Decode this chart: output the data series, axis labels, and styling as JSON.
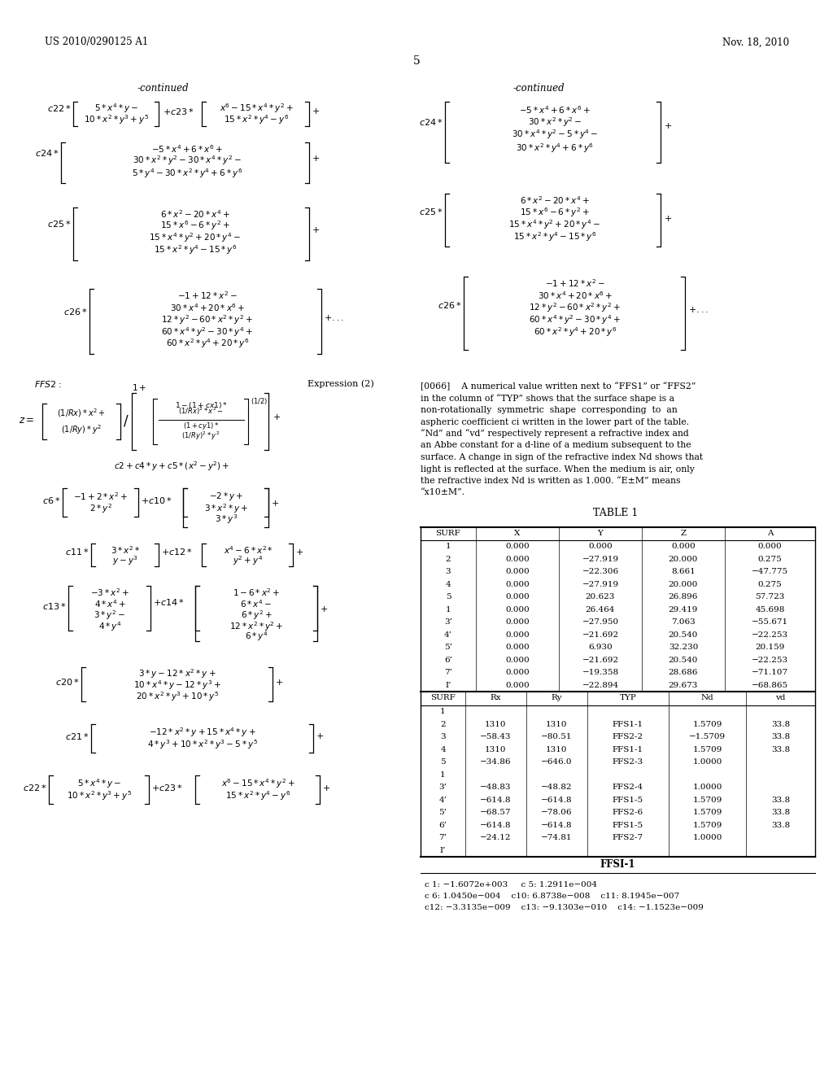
{
  "patent_number": "US 2010/0290125 A1",
  "date": "Nov. 18, 2010",
  "page_number": "5",
  "background_color": "#ffffff",
  "text_color": "#000000",
  "table_title": "TABLE 1",
  "table_headers1": [
    "SURF",
    "X",
    "Y",
    "Z",
    "A"
  ],
  "table_data1": [
    [
      "1",
      "0.000",
      "0.000",
      "0.000",
      "0.000"
    ],
    [
      "2",
      "0.000",
      "−27.919",
      "20.000",
      "0.275"
    ],
    [
      "3",
      "0.000",
      "−22.306",
      "8.661",
      "−47.775"
    ],
    [
      "4",
      "0.000",
      "−27.919",
      "20.000",
      "0.275"
    ],
    [
      "5",
      "0.000",
      "20.623",
      "26.896",
      "57.723"
    ],
    [
      "1",
      "0.000",
      "26.464",
      "29.419",
      "45.698"
    ],
    [
      "3’",
      "0.000",
      "−27.950",
      "7.063",
      "−55.671"
    ],
    [
      "4’",
      "0.000",
      "−21.692",
      "20.540",
      "−22.253"
    ],
    [
      "5’",
      "0.000",
      "6.930",
      "32.230",
      "20.159"
    ],
    [
      "6’",
      "0.000",
      "−21.692",
      "20.540",
      "−22.253"
    ],
    [
      "7’",
      "0.000",
      "−19.358",
      "28.686",
      "−71.107"
    ],
    [
      "I’",
      "0.000",
      "−22.894",
      "29.673",
      "−68.865"
    ]
  ],
  "table_headers2": [
    "SURF",
    "Rx",
    "Ry",
    "TYP",
    "Nd",
    "vd"
  ],
  "table_data2": [
    [
      "1",
      "",
      "",
      "",
      "",
      ""
    ],
    [
      "2",
      "1310",
      "1310",
      "FFS1-1",
      "1.5709",
      "33.8"
    ],
    [
      "3",
      "−58.43",
      "−80.51",
      "FFS2-2",
      "−1.5709",
      "33.8"
    ],
    [
      "4",
      "1310",
      "1310",
      "FFS1-1",
      "1.5709",
      "33.8"
    ],
    [
      "5",
      "−34.86",
      "−646.0",
      "FFS2-3",
      "1.0000",
      ""
    ],
    [
      "1",
      "",
      "",
      "",
      "",
      ""
    ],
    [
      "3’",
      "−48.83",
      "−48.82",
      "FFS2-4",
      "1.0000",
      ""
    ],
    [
      "4’",
      "−614.8",
      "−614.8",
      "FFS1-5",
      "1.5709",
      "33.8"
    ],
    [
      "5’",
      "−68.57",
      "−78.06",
      "FFS2-6",
      "1.5709",
      "33.8"
    ],
    [
      "6’",
      "−614.8",
      "−614.8",
      "FFS1-5",
      "1.5709",
      "33.8"
    ],
    [
      "7’",
      "−24.12",
      "−74.81",
      "FFS2-7",
      "1.0000",
      ""
    ],
    [
      "I’",
      "",
      "",
      "",
      "",
      ""
    ]
  ],
  "ffsi_label": "FFSI-1",
  "coeff_line1": "c 1: −1.6072e+003     c 5: 1.2911e−004",
  "coeff_line2": "c 6: 1.0450e−004    c10: 6.8738e−008    c11: 8.1945e−007",
  "coeff_line3": "c12: −3.3135e−009    c13: −9.1303e−010    c14: −1.1523e−009",
  "paragraph_text": "[0066]    A numerical value written next to “FFS1” or “FFS2” in the column of “TYP” shows that the surface shape is a non-rotationally  symmetric  shape  corresponding  to  an aspheric coefficient ci written in the lower part of the table. “Nd” and “vd” respectively represent a refractive index and an Abbe constant for a d-line of a medium subsequent to the surface. A change in sign of the refractive index Nd shows that light is reflected at the surface. When the medium is air, only the refractive index Nd is written as 1.000. “E±M” means “x10±M”."
}
